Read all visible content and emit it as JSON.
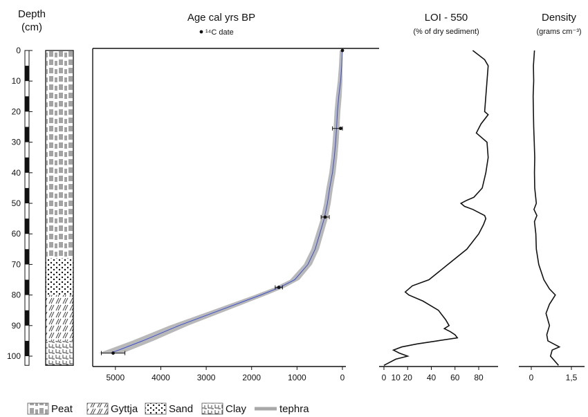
{
  "chart_data": {
    "type": "line",
    "depth_axis": {
      "title_line1": "Depth",
      "title_line2": "(cm)",
      "range": [
        0,
        103
      ],
      "ticks": [
        0,
        10,
        20,
        30,
        40,
        50,
        60,
        70,
        80,
        90,
        100
      ],
      "tick_labels": [
        "0",
        "10",
        "20",
        "30",
        "40",
        "50",
        "60",
        "70",
        "80",
        "90",
        "100"
      ]
    },
    "lithology": [
      {
        "type": "peat",
        "from": 0,
        "to": 68
      },
      {
        "type": "sand",
        "from": 68,
        "to": 80
      },
      {
        "type": "gyttja",
        "from": 80,
        "to": 95
      },
      {
        "type": "clay",
        "from": 95,
        "to": 103
      }
    ],
    "age_panel": {
      "title": "Age cal yrs BP",
      "legend_label": "¹⁴C date",
      "x_range": [
        5500,
        0
      ],
      "x_ticks": [
        5000,
        4000,
        3000,
        2000,
        1000,
        0
      ],
      "x_tick_labels": [
        "5000",
        "4000",
        "3000",
        "2000",
        "1000",
        "0"
      ],
      "model": {
        "depth": [
          0,
          5,
          10,
          15,
          20,
          25.5,
          30,
          35,
          40,
          45,
          50,
          55,
          60,
          65,
          70,
          75,
          77.5,
          80,
          85,
          90,
          95,
          99
        ],
        "age": [
          0,
          15,
          40,
          80,
          110,
          130,
          150,
          180,
          220,
          280,
          330,
          400,
          500,
          600,
          760,
          1050,
          1380,
          1800,
          2700,
          3600,
          4400,
          5100
        ]
      },
      "dates": [
        {
          "depth": 0,
          "age": 0,
          "err": 0
        },
        {
          "depth": 25.5,
          "age": 40,
          "err": 180
        },
        {
          "depth": 54.5,
          "age": 380,
          "err": 90
        },
        {
          "depth": 77.5,
          "age": 1400,
          "err": 80
        },
        {
          "depth": 99,
          "age": 5050,
          "err": 260
        }
      ]
    },
    "loi_panel": {
      "title": "LOI - 550",
      "subtitle": "(% of dry sediment)",
      "x_range": [
        0,
        90
      ],
      "x_ticks": [
        0,
        20,
        40,
        60,
        80
      ],
      "x_tick_labels": [
        "0",
        "20",
        "40",
        "60",
        "80"
      ],
      "x_minor": [
        10
      ],
      "x_minor_labels": [
        "10"
      ],
      "depth": [
        0,
        3,
        5,
        10,
        15,
        20,
        21,
        24,
        27,
        30,
        35,
        40,
        45,
        48,
        49,
        50,
        51,
        52,
        54,
        55,
        57,
        60,
        65,
        70,
        75,
        77,
        79,
        80,
        82,
        85,
        88,
        90,
        91,
        92,
        93,
        94,
        95,
        96,
        97,
        98,
        99,
        100,
        101,
        103
      ],
      "values": [
        75,
        85,
        88,
        87,
        86,
        85,
        88,
        82,
        78,
        87,
        88,
        86,
        83,
        76,
        70,
        65,
        68,
        75,
        85,
        86,
        84,
        80,
        70,
        54,
        38,
        24,
        18,
        21,
        33,
        46,
        52,
        55,
        51,
        56,
        60,
        62,
        45,
        28,
        15,
        8,
        13,
        20,
        10,
        0
      ]
    },
    "density_panel": {
      "title": "Density",
      "subtitle": "(grams cm⁻³)",
      "x_range": [
        0,
        2
      ],
      "x_ticks": [
        0,
        1.5
      ],
      "x_tick_labels": [
        "0",
        "1,5"
      ],
      "depth": [
        0,
        5,
        10,
        15,
        20,
        25,
        30,
        35,
        40,
        45,
        50,
        52,
        54,
        56,
        60,
        65,
        70,
        75,
        78,
        80,
        83,
        86,
        90,
        93,
        95,
        97,
        98,
        100,
        103
      ],
      "values": [
        0.12,
        0.08,
        0.09,
        0.07,
        0.08,
        0.09,
        0.11,
        0.13,
        0.12,
        0.13,
        0.19,
        0.1,
        0.21,
        0.12,
        0.17,
        0.19,
        0.28,
        0.47,
        0.68,
        0.9,
        0.68,
        0.55,
        0.68,
        0.58,
        0.62,
        1.05,
        0.78,
        0.72,
        1.02
      ]
    }
  },
  "legend": [
    {
      "key": "peat",
      "label": "Peat"
    },
    {
      "key": "gyttja",
      "label": "Gyttja"
    },
    {
      "key": "sand",
      "label": "Sand"
    },
    {
      "key": "clay",
      "label": "Clay"
    },
    {
      "key": "tephra",
      "label": "tephra"
    }
  ],
  "colors": {
    "line": "#111111",
    "model": "#3a4fd0",
    "envelope": "#b8b8b8",
    "tephra": "#a8a8a8"
  }
}
